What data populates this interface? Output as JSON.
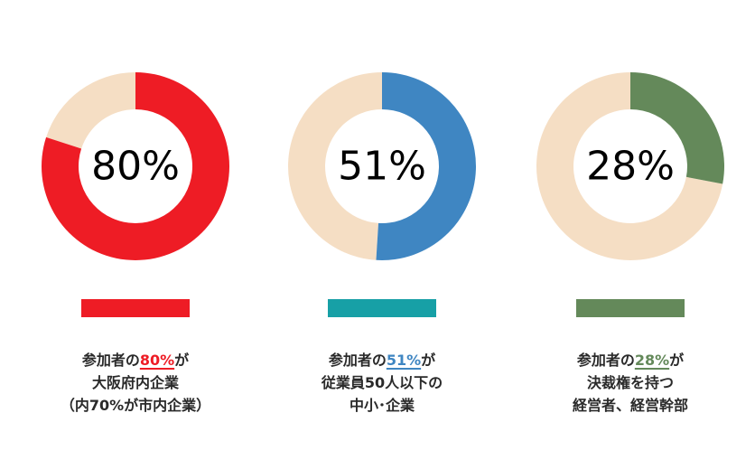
{
  "colors": {
    "background": "#ffffff",
    "ring_remainder": "#f5dec4"
  },
  "chart_data": [
    {
      "type": "pie",
      "value": 80,
      "remainder": 20,
      "center_label": "80%",
      "color": "#ee1c25",
      "legend_bar_color": "#ee1c25",
      "caption": {
        "line1_prefix": "参加者の",
        "line1_highlight": "80%",
        "line1_suffix": "が",
        "line2": "大阪府内企業",
        "line3": "（内70%が市内企業）"
      }
    },
    {
      "type": "pie",
      "value": 51,
      "remainder": 49,
      "center_label": "51%",
      "color": "#3f86c2",
      "legend_bar_color": "#17a0a6",
      "caption": {
        "line1_prefix": "参加者の",
        "line1_highlight": "51%",
        "line1_suffix": "が",
        "line2": "従業員50人以下の",
        "line3": "中小･企業"
      }
    },
    {
      "type": "pie",
      "value": 28,
      "remainder": 72,
      "center_label": "28%",
      "color": "#64895a",
      "legend_bar_color": "#64895a",
      "caption": {
        "line1_prefix": "参加者の",
        "line1_highlight": "28%",
        "line1_suffix": "が",
        "line2": "決裁権を持つ",
        "line3": "経営者、経営幹部"
      }
    }
  ]
}
